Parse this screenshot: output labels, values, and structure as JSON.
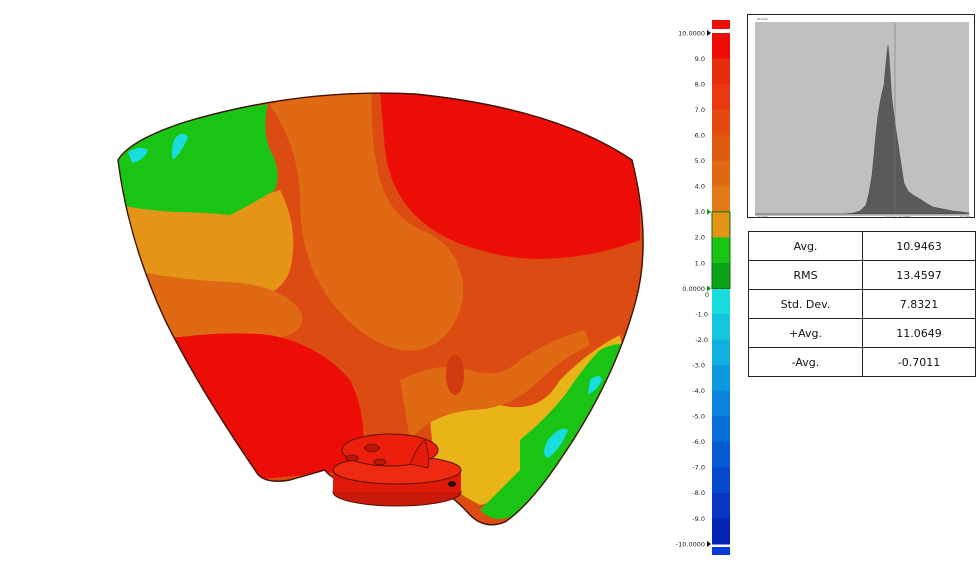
{
  "colors": {
    "max_red": "#ec0d07",
    "red": "#e62d0c",
    "dark_orange": "#dc4b12",
    "orange": "#e06a14",
    "orange_light": "#e49518",
    "amber": "#e8b418",
    "green": "#1ac414",
    "green_dark": "#0aa31a",
    "cyan": "#19dcdc",
    "blue": "#0a3bd6",
    "histogram_bg": "#c0c0c0",
    "histogram_fill": "#5a5a5a"
  },
  "colorbar": {
    "ticks": [
      "10.0000",
      "9.0",
      "8.0",
      "7.0",
      "6.0",
      "5.0",
      "4.0",
      "3.0",
      "2.0",
      "1.0",
      "0.0000",
      "0",
      "-1.0",
      "-2.0",
      "-3.0",
      "-4.0",
      "-5.0",
      "-6.0",
      "-7.0",
      "-8.0",
      "-9.0",
      "-10.0000"
    ]
  },
  "histogram": {
    "title": "W-Scan",
    "x_left_label": "-10.000",
    "x_right_label": "10.000",
    "x_center_label": "Average 10.9463"
  },
  "stats": {
    "rows": [
      {
        "label": "Avg.",
        "value": "10.9463"
      },
      {
        "label": "RMS",
        "value": "13.4597"
      },
      {
        "label": "Std. Dev.",
        "value": "7.8321"
      },
      {
        "label": "+Avg.",
        "value": "11.0649"
      },
      {
        "label": "-Avg.",
        "value": "-0.7011"
      }
    ]
  }
}
